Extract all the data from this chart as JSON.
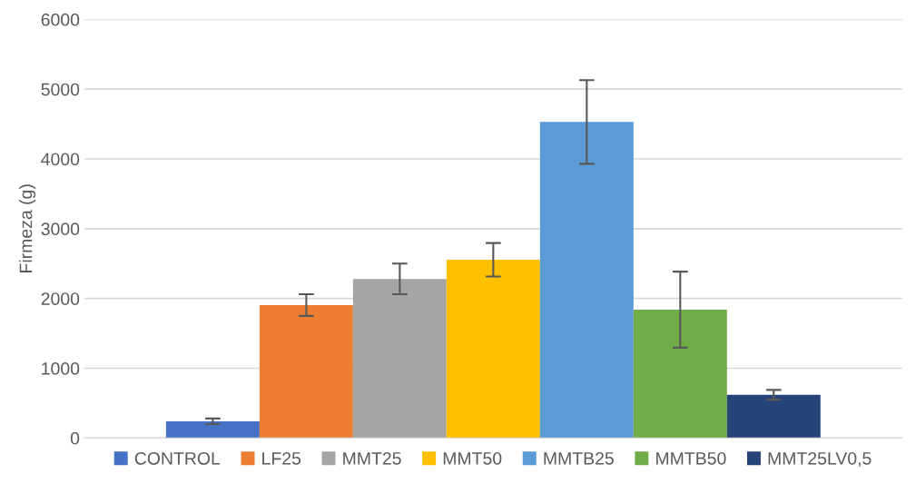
{
  "chart_data": {
    "type": "bar",
    "ylabel": "Firmeza (g)",
    "categories": [
      null
    ],
    "ylim": [
      0,
      6000
    ],
    "yticks": [
      0,
      1000,
      2000,
      3000,
      4000,
      5000,
      6000
    ],
    "grid": "y",
    "legend": "bottom",
    "series": [
      {
        "name": "CONTROL",
        "color": "#4472c4",
        "values": [
          240
        ],
        "errors": [
          40
        ]
      },
      {
        "name": "LF25",
        "color": "#ed7d31",
        "values": [
          1905
        ],
        "errors": [
          155
        ]
      },
      {
        "name": "MMT25",
        "color": "#a5a5a5",
        "values": [
          2280
        ],
        "errors": [
          220
        ]
      },
      {
        "name": "MMT50",
        "color": "#ffc000",
        "values": [
          2555
        ],
        "errors": [
          240
        ]
      },
      {
        "name": "MMTB25",
        "color": "#5b9bd5",
        "values": [
          4530
        ],
        "errors": [
          600
        ]
      },
      {
        "name": "MMTB50",
        "color": "#70ad47",
        "values": [
          1840
        ],
        "errors": [
          545
        ]
      },
      {
        "name": "MMT25LV0,5",
        "color": "#264478",
        "values": [
          620
        ],
        "errors": [
          70
        ]
      }
    ]
  }
}
